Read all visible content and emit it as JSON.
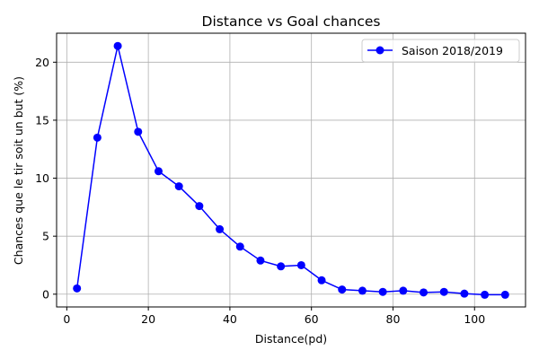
{
  "chart_data": {
    "type": "line",
    "title": "Distance vs Goal chances",
    "xlabel": "Distance(pd)",
    "ylabel": "Chances que le tir soit un but (%)",
    "xlim": [
      -2.5,
      112.5
    ],
    "ylim": [
      -1.1,
      22.5
    ],
    "xticks": [
      0,
      20,
      40,
      60,
      80,
      100
    ],
    "yticks": [
      0,
      5,
      10,
      15,
      20
    ],
    "grid": true,
    "legend_position": "top-right",
    "series": [
      {
        "name": "Saison 2018/2019",
        "color": "#0000ff",
        "marker": "circle",
        "x": [
          2.5,
          7.5,
          12.5,
          17.5,
          22.5,
          27.5,
          32.5,
          37.5,
          42.5,
          47.5,
          52.5,
          57.5,
          62.5,
          67.5,
          72.5,
          77.5,
          82.5,
          87.5,
          92.5,
          97.5,
          102.5,
          107.5
        ],
        "y": [
          0.5,
          13.5,
          21.4,
          14.0,
          10.6,
          9.3,
          7.6,
          5.6,
          4.1,
          2.9,
          2.4,
          2.5,
          1.2,
          0.4,
          0.3,
          0.2,
          0.3,
          0.15,
          0.2,
          0.05,
          -0.05,
          -0.05
        ]
      }
    ]
  }
}
